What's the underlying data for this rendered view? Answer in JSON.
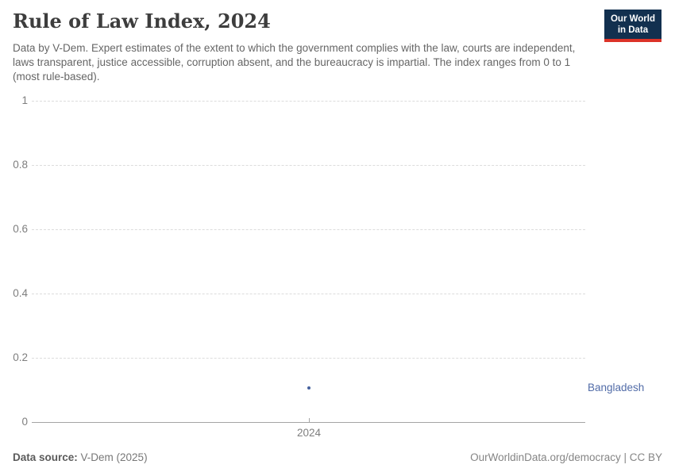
{
  "header": {
    "title": "Rule of Law Index, 2024",
    "subtitle": "Data by V-Dem. Expert estimates of the extent to which the government complies with the law, courts are independent, laws transparent, justice accessible, corruption absent, and the bureaucracy is impartial. The index ranges from 0 to 1 (most rule-based).",
    "logo": {
      "line1": "Our World",
      "line2": "in Data",
      "bg_color": "#12304f",
      "accent_color": "#dc3328"
    }
  },
  "chart_data": {
    "type": "scatter",
    "title": "Rule of Law Index, 2024",
    "x": [
      2024
    ],
    "series": [
      {
        "name": "Bangladesh",
        "values": [
          0.105
        ],
        "point_color": "#46619e",
        "label_color": "#526ca8"
      }
    ],
    "xlabel": "",
    "ylabel": "",
    "ylim": [
      0,
      1
    ],
    "yticks": [
      0,
      0.2,
      0.4,
      0.6,
      0.8,
      1
    ],
    "ytick_labels": [
      "0",
      "0.2",
      "0.4",
      "0.6",
      "0.8",
      "1"
    ],
    "xticks": [
      2024
    ],
    "xtick_labels": [
      "2024"
    ],
    "grid": "horizontal-dashed",
    "gridline_color": "#dcdcdc",
    "axis_line_color": "#a5a5a5",
    "legend_position": "right-of-point"
  },
  "footer": {
    "source_label": "Data source:",
    "source_value": " V-Dem (2025)",
    "attribution": "OurWorldinData.org/democracy | CC BY"
  }
}
